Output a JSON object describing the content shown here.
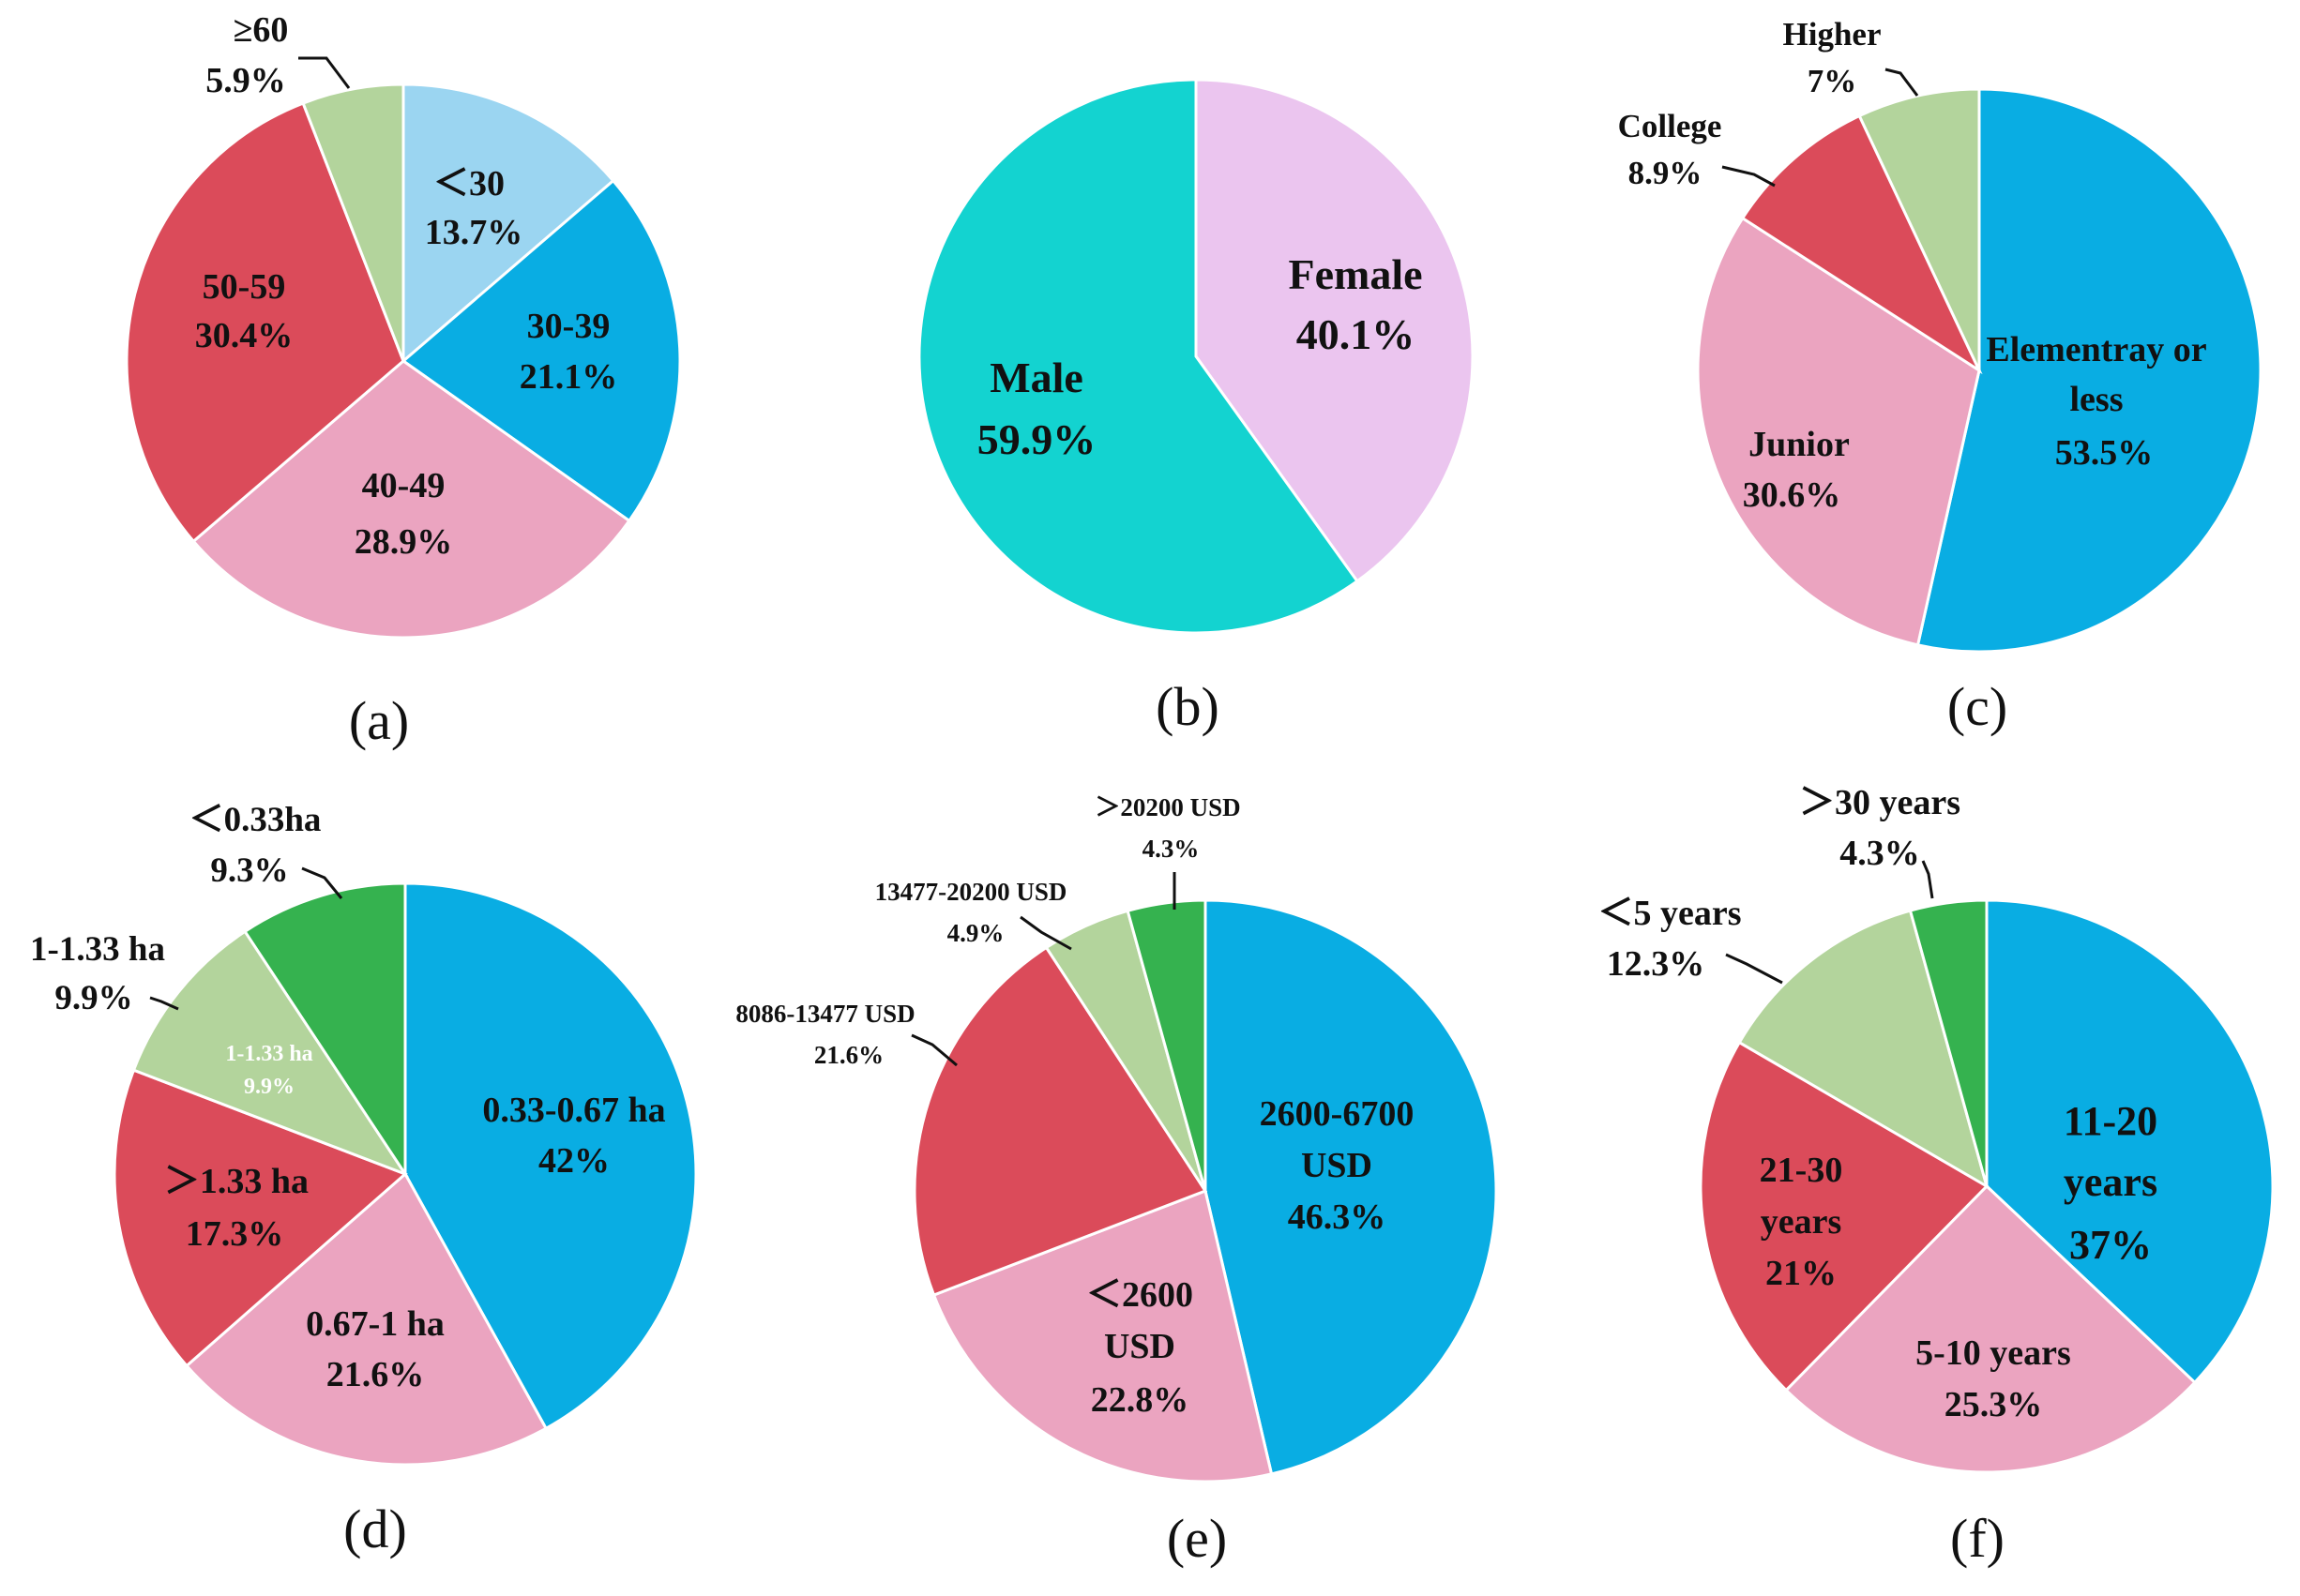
{
  "chart_data": [
    {
      "type": "pie",
      "caption": "(a)",
      "slices": [
        {
          "label": "<30",
          "display": "＜30",
          "pct_text": "13.7%",
          "value": 13.7,
          "color": "#9bd5f1"
        },
        {
          "label": "30-39",
          "display": "30-39",
          "pct_text": "21.1%",
          "value": 21.1,
          "color": "#09ade3"
        },
        {
          "label": "40-49",
          "display": "40-49",
          "pct_text": "28.9%",
          "value": 28.9,
          "color": "#eba4c0"
        },
        {
          "label": "50-59",
          "display": "50-59",
          "pct_text": "30.4%",
          "value": 30.4,
          "color": "#db4b5a"
        },
        {
          "label": ">=60",
          "display": "≥60",
          "pct_text": "5.9%",
          "value": 5.9,
          "color": "#b3d49c"
        }
      ]
    },
    {
      "type": "pie",
      "caption": "(b)",
      "slices": [
        {
          "label": "Female",
          "display": "Female",
          "pct_text": "40.1%",
          "value": 40.1,
          "color": "#ebc5ef"
        },
        {
          "label": "Male",
          "display": "Male",
          "pct_text": "59.9%",
          "value": 59.9,
          "color": "#13d3d0"
        }
      ]
    },
    {
      "type": "pie",
      "caption": "(c)",
      "slices": [
        {
          "label": "Elementray or less",
          "display": "Elementray or less",
          "pct_text": "53.5%",
          "value": 53.5,
          "color": "#09ade3"
        },
        {
          "label": "Junior",
          "display": "Junior",
          "pct_text": "30.6%",
          "value": 30.6,
          "color": "#eba4c0"
        },
        {
          "label": "College",
          "display": "College",
          "pct_text": "8.9%",
          "value": 8.9,
          "color": "#db4b5a"
        },
        {
          "label": "Higher",
          "display": "Higher",
          "pct_text": "7%",
          "value": 7,
          "color": "#b3d49c"
        }
      ]
    },
    {
      "type": "pie",
      "caption": "(d)",
      "slices": [
        {
          "label": "0.33-0.67 ha",
          "display": "0.33-0.67 ha",
          "pct_text": "42%",
          "value": 42,
          "color": "#09ade3"
        },
        {
          "label": "0.67-1 ha",
          "display": "0.67-1 ha",
          "pct_text": "21.6%",
          "value": 21.6,
          "color": "#eba4c0"
        },
        {
          "label": ">1.33 ha",
          "display": "＞1.33 ha",
          "pct_text": "17.3%",
          "value": 17.3,
          "color": "#db4b5a"
        },
        {
          "label": "1-1.33 ha",
          "display": "1-1.33 ha",
          "pct_text": "9.9%",
          "value": 9.9,
          "color": "#b3d49c"
        },
        {
          "label": "<0.33ha",
          "display": "＜0.33ha",
          "pct_text": "9.3%",
          "value": 9.3,
          "color": "#35b24f"
        }
      ]
    },
    {
      "type": "pie",
      "caption": "(e)",
      "slices": [
        {
          "label": "2600-6700 USD",
          "display": "2600-6700 USD",
          "pct_text": "46.3%",
          "value": 46.3,
          "color": "#09ade3"
        },
        {
          "label": "<2600 USD",
          "display": "＜2600 USD",
          "pct_text": "22.8%",
          "value": 22.8,
          "color": "#eba4c0"
        },
        {
          "label": "8086-13477 USD",
          "display": "8086-13477 USD",
          "pct_text": "21.6%",
          "value": 21.6,
          "color": "#db4b5a"
        },
        {
          "label": "13477-20200 USD",
          "display": "13477-20200 USD",
          "pct_text": "4.9%",
          "value": 4.9,
          "color": "#b3d49c"
        },
        {
          "label": ">20200 USD",
          "display": "＞20200 USD",
          "pct_text": "4.3%",
          "value": 4.3,
          "color": "#35b24f"
        }
      ]
    },
    {
      "type": "pie",
      "caption": "(f)",
      "slices": [
        {
          "label": "11-20 years",
          "display": "11-20 years",
          "pct_text": "37%",
          "value": 37,
          "color": "#09ade3"
        },
        {
          "label": "5-10 years",
          "display": "5-10 years",
          "pct_text": "25.3%",
          "value": 25.3,
          "color": "#eba4c0"
        },
        {
          "label": "21-30 years",
          "display": "21-30 years",
          "pct_text": "21%",
          "value": 21,
          "color": "#db4b5a"
        },
        {
          "label": "<5 years",
          "display": "＜5 years",
          "pct_text": "12.3%",
          "value": 12.3,
          "color": "#b3d49c"
        },
        {
          "label": ">30 years",
          "display": "＞30 years",
          "pct_text": "4.3%",
          "value": 4.3,
          "color": "#35b24f"
        }
      ]
    }
  ]
}
